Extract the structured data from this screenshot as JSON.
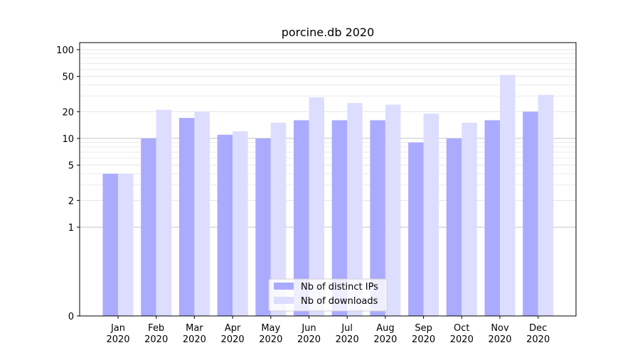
{
  "chart_data": {
    "type": "bar",
    "title": "porcine.db 2020",
    "xlabel": "",
    "ylabel": "",
    "yscale": "symlog",
    "ylim": [
      0,
      120
    ],
    "yticks": [
      0,
      1,
      2,
      5,
      10,
      20,
      50,
      100
    ],
    "categories": [
      [
        "Jan",
        "2020"
      ],
      [
        "Feb",
        "2020"
      ],
      [
        "Mar",
        "2020"
      ],
      [
        "Apr",
        "2020"
      ],
      [
        "May",
        "2020"
      ],
      [
        "Jun",
        "2020"
      ],
      [
        "Jul",
        "2020"
      ],
      [
        "Aug",
        "2020"
      ],
      [
        "Sep",
        "2020"
      ],
      [
        "Oct",
        "2020"
      ],
      [
        "Nov",
        "2020"
      ],
      [
        "Dec",
        "2020"
      ]
    ],
    "series": [
      {
        "name": "Nb of distinct IPs",
        "color": "#aaaaff",
        "values": [
          4,
          10,
          17,
          11,
          10,
          16,
          16,
          16,
          9,
          10,
          16,
          20
        ]
      },
      {
        "name": "Nb of downloads",
        "color": "#ddddff",
        "values": [
          4,
          21,
          20,
          12,
          15,
          29,
          25,
          24,
          19,
          15,
          52,
          31
        ]
      }
    ],
    "legend_position": "lower-center",
    "grid": "horizontal"
  }
}
